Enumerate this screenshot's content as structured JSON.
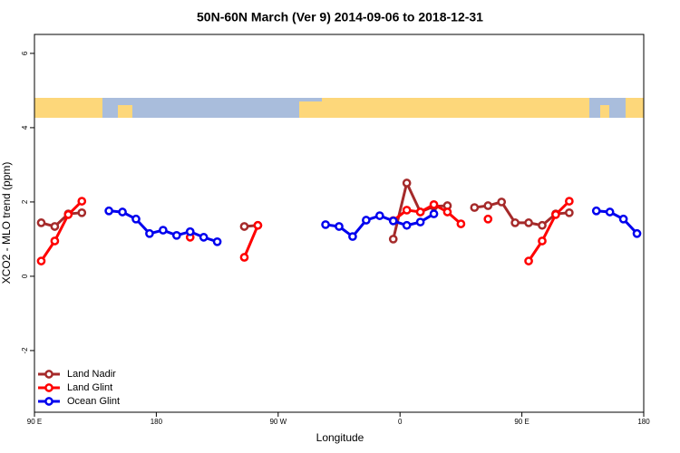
{
  "chart_data": {
    "type": "line",
    "title": "50N-60N March (Ver 9)   2014-09-06 to 2018-12-31",
    "x_label": "Longitude",
    "y_label": "XCO2 - MLO trend (ppm)",
    "xlim": [
      90,
      540
    ],
    "xticks": [
      {
        "value": 90,
        "label": "90 E"
      },
      {
        "value": 180,
        "label": "180"
      },
      {
        "value": 270,
        "label": "90 W"
      },
      {
        "value": 360,
        "label": "0"
      },
      {
        "value": 450,
        "label": "90 E"
      },
      {
        "value": 540,
        "label": "180"
      }
    ],
    "ylim": [
      -3.66,
      6.51
    ],
    "yticks": [
      -2,
      0,
      2,
      4,
      6
    ],
    "legend": "bottom-left",
    "series": [
      {
        "name": "Land Nadir",
        "color": "#a52a2a",
        "x": [
          95,
          105,
          115,
          125,
          135,
          245,
          255,
          265,
          355,
          365,
          375,
          385,
          395,
          405,
          415,
          425,
          435,
          445,
          455,
          465,
          475,
          485
        ],
        "values": [
          1.44,
          1.34,
          1.68,
          1.71,
          null,
          1.34,
          1.37,
          null,
          1.0,
          2.51,
          1.73,
          1.88,
          1.9,
          null,
          1.85,
          1.9,
          2.0,
          1.44,
          1.44,
          1.37,
          1.68,
          1.71
        ]
      },
      {
        "name": "Land Glint",
        "color": "#ff0000",
        "x": [
          95,
          105,
          115,
          125,
          135,
          205,
          215,
          245,
          255,
          265,
          355,
          365,
          375,
          385,
          395,
          405,
          415,
          425,
          435,
          455,
          465,
          475,
          485
        ],
        "values": [
          0.41,
          0.95,
          1.66,
          2.02,
          null,
          1.05,
          null,
          0.51,
          1.37,
          null,
          1.5,
          1.78,
          1.73,
          1.93,
          1.73,
          1.41,
          null,
          1.54,
          null,
          0.41,
          0.95,
          1.66,
          2.02
        ]
      },
      {
        "name": "Ocean Glint",
        "color": "#0000ee",
        "x": [
          145,
          155,
          165,
          175,
          185,
          195,
          205,
          215,
          225,
          235,
          305,
          315,
          325,
          335,
          345,
          355,
          365,
          375,
          385,
          395,
          505,
          515,
          525,
          535
        ],
        "values": [
          1.76,
          1.73,
          1.54,
          1.15,
          1.24,
          1.1,
          1.2,
          1.05,
          0.93,
          null,
          1.39,
          1.34,
          1.07,
          1.51,
          1.63,
          1.49,
          1.37,
          1.46,
          1.68,
          null,
          1.76,
          1.73,
          1.54,
          1.15
        ]
      }
    ]
  }
}
